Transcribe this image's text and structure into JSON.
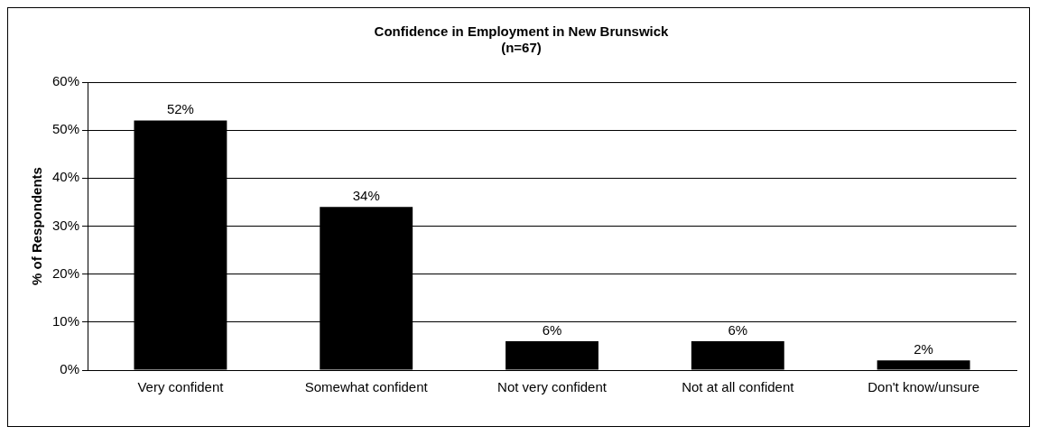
{
  "chart_data": {
    "type": "bar",
    "title": "Confidence in Employment in New Brunswick",
    "subtitle": "(n=67)",
    "ylabel": "% of Respondents",
    "categories": [
      "Very confident",
      "Somewhat confident",
      "Not very confident",
      "Not at all confident",
      "Don't know/unsure"
    ],
    "values": [
      52,
      34,
      6,
      6,
      2
    ],
    "color": "#000000",
    "value_labels": [
      "52%",
      "34%",
      "6%",
      "6%",
      "2%"
    ],
    "ylim": [
      0,
      60
    ],
    "yticks": [
      {
        "value": 0,
        "label": "0%"
      },
      {
        "value": 10,
        "label": "10%"
      },
      {
        "value": 20,
        "label": "20%"
      },
      {
        "value": 30,
        "label": "30%"
      },
      {
        "value": 40,
        "label": "40%"
      },
      {
        "value": 50,
        "label": "50%"
      },
      {
        "value": 60,
        "label": "60%"
      }
    ],
    "grid": "y",
    "legend": false
  }
}
